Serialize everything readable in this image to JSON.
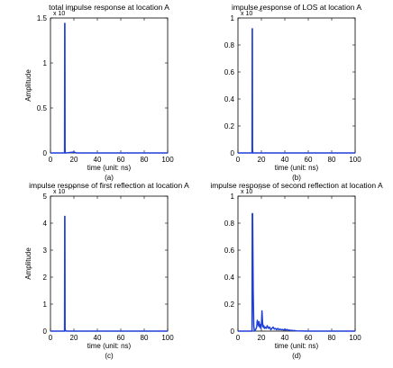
{
  "chart_data": [
    {
      "type": "line",
      "title": "total impulse response at location A",
      "xlabel": "time (unit: ns)",
      "ylabel": "Amplitude",
      "caption": "(a)",
      "scale_label": "x 10",
      "scale_exp": "-6",
      "xlim": [
        0,
        100
      ],
      "ylim": [
        0,
        1.5
      ],
      "xticks": [
        "0",
        "20",
        "40",
        "60",
        "80",
        "100"
      ],
      "yticks": [
        {
          "v": 0,
          "l": "0"
        },
        {
          "v": 0.5,
          "l": "0.5"
        },
        {
          "v": 1,
          "l": "1"
        },
        {
          "v": 1.5,
          "l": "1.5"
        }
      ],
      "series": [
        {
          "color": "#1f3fd8",
          "x": [
            0,
            12.0,
            12.15,
            12.3,
            12.45,
            12.6,
            12.8,
            13.2,
            20,
            22,
            40,
            100
          ],
          "y": [
            0,
            0,
            1.44,
            1.44,
            0.05,
            0.0,
            0.0,
            0.0,
            0.01,
            0.0,
            0.0,
            0.0
          ]
        }
      ]
    },
    {
      "type": "line",
      "title": "impulse response of LOS at location A",
      "xlabel": "time (unit: ns)",
      "ylabel": "",
      "caption": "(b)",
      "scale_label": "x 10",
      "scale_exp": "-6",
      "xlim": [
        0,
        100
      ],
      "ylim": [
        0,
        1
      ],
      "xticks": [
        "0",
        "20",
        "40",
        "60",
        "80",
        "100"
      ],
      "yticks": [
        {
          "v": 0,
          "l": "0"
        },
        {
          "v": 0.2,
          "l": "0.2"
        },
        {
          "v": 0.4,
          "l": "0.4"
        },
        {
          "v": 0.6,
          "l": "0.6"
        },
        {
          "v": 0.8,
          "l": "0.8"
        },
        {
          "v": 1,
          "l": "1"
        }
      ],
      "series": [
        {
          "color": "#1f3fd8",
          "x": [
            0,
            12.0,
            12.15,
            12.3,
            12.45,
            12.7,
            100
          ],
          "y": [
            0,
            0,
            0.92,
            0.92,
            0.02,
            0,
            0
          ]
        }
      ]
    },
    {
      "type": "line",
      "title": "impulse response of first reflection at location A",
      "xlabel": "time (unit: ns)",
      "ylabel": "Amplitude",
      "caption": "(c)",
      "scale_label": "x 10",
      "scale_exp": "-7",
      "xlim": [
        0,
        100
      ],
      "ylim": [
        0,
        5
      ],
      "xticks": [
        "0",
        "20",
        "40",
        "60",
        "80",
        "100"
      ],
      "yticks": [
        {
          "v": 0,
          "l": "0"
        },
        {
          "v": 1,
          "l": "1"
        },
        {
          "v": 2,
          "l": "2"
        },
        {
          "v": 3,
          "l": "3"
        },
        {
          "v": 4,
          "l": "4"
        },
        {
          "v": 5,
          "l": "5"
        }
      ],
      "series": [
        {
          "color": "#1f3fd8",
          "x": [
            0,
            12.0,
            12.15,
            12.3,
            12.45,
            12.7,
            14,
            100
          ],
          "y": [
            0,
            0,
            4.25,
            4.25,
            0.1,
            0.02,
            0,
            0
          ]
        }
      ]
    },
    {
      "type": "line",
      "title": "impulse response of second reflection at location A",
      "xlabel": "time (unit: ns)",
      "ylabel": "",
      "caption": "(d)",
      "scale_label": "x 10",
      "scale_exp": "-7",
      "xlim": [
        0,
        100
      ],
      "ylim": [
        0,
        1
      ],
      "xticks": [
        "0",
        "20",
        "40",
        "60",
        "80",
        "100"
      ],
      "yticks": [
        {
          "v": 0,
          "l": "0"
        },
        {
          "v": 0.2,
          "l": "0.2"
        },
        {
          "v": 0.4,
          "l": "0.4"
        },
        {
          "v": 0.6,
          "l": "0.6"
        },
        {
          "v": 0.8,
          "l": "0.8"
        },
        {
          "v": 1,
          "l": "1"
        }
      ],
      "series": [
        {
          "color": "#1f3fd8",
          "x": [
            0,
            12.0,
            12.2,
            12.5,
            13.0,
            13.5,
            14.0,
            15.0,
            16.0,
            16.5,
            17.0,
            17.5,
            18.0,
            18.5,
            19.0,
            19.5,
            20.0,
            20.5,
            21.0,
            21.5,
            22.0,
            22.5,
            23.0,
            24.0,
            25.0,
            26.0,
            27.0,
            28.0,
            29.0,
            30.0,
            31.0,
            32.0,
            33.0,
            34.0,
            35.0,
            36.0,
            37.0,
            38.0,
            39.0,
            40.0,
            41.0,
            42.0,
            43.0,
            44.0,
            45.0,
            46.0,
            47.0,
            48.0,
            50.0,
            55.0,
            60.0,
            100
          ],
          "y": [
            0,
            0,
            0.87,
            0.87,
            0.3,
            0.04,
            0.0,
            0.01,
            0.03,
            0.08,
            0.06,
            0.04,
            0.07,
            0.03,
            0.05,
            0.02,
            0.04,
            0.15,
            0.06,
            0.03,
            0.04,
            0.02,
            0.03,
            0.02,
            0.04,
            0.02,
            0.03,
            0.01,
            0.02,
            0.03,
            0.015,
            0.02,
            0.01,
            0.02,
            0.01,
            0.015,
            0.01,
            0.012,
            0.008,
            0.015,
            0.008,
            0.012,
            0.006,
            0.008,
            0.004,
            0.006,
            0.003,
            0.004,
            0.002,
            0.001,
            0.0,
            0.0
          ]
        }
      ]
    }
  ]
}
